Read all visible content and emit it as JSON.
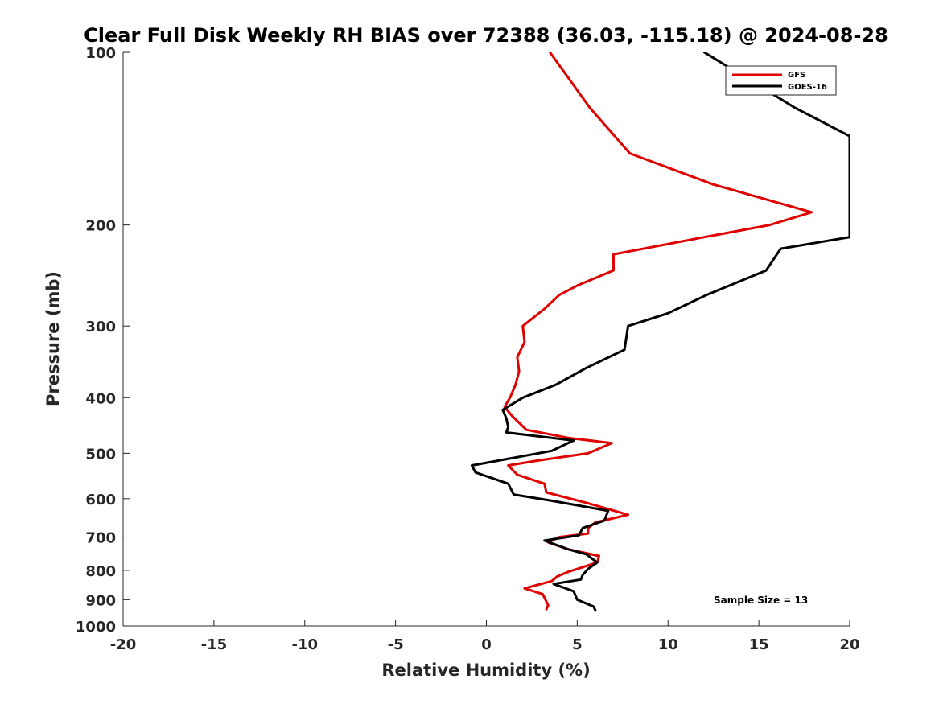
{
  "chart_data": {
    "type": "line",
    "title": "Clear Full Disk Weekly RH BIAS over 72388 (36.03, -115.18) @ 2024-08-28",
    "xlabel": "Relative Humidity (%)",
    "ylabel": "Pressure (mb)",
    "xlim": [
      -20,
      20
    ],
    "ylim": [
      1000,
      100
    ],
    "y_scale": "log",
    "y_reversed": true,
    "x_ticks": [
      -20,
      -15,
      -10,
      -5,
      0,
      5,
      10,
      15,
      20
    ],
    "x_tick_labels": [
      "-20",
      "-15",
      "-10",
      "-5",
      "0",
      "5",
      "10",
      "15",
      "20"
    ],
    "y_ticks": [
      100,
      200,
      300,
      400,
      500,
      600,
      700,
      800,
      900,
      1000
    ],
    "y_tick_labels": [
      "100",
      "200",
      "300",
      "400",
      "500",
      "600",
      "700",
      "800",
      "900",
      "1000"
    ],
    "grid": false,
    "legend_position": "top-right",
    "annotation": "Sample Size = 13",
    "series": [
      {
        "name": "GFS",
        "color": "#e00000",
        "points": [
          [
            3.5,
            100
          ],
          [
            5.7,
            125
          ],
          [
            7.9,
            150
          ],
          [
            12.5,
            170
          ],
          [
            17.9,
            190
          ],
          [
            15.6,
            200
          ],
          [
            12.0,
            210
          ],
          [
            7.0,
            225
          ],
          [
            7.0,
            240
          ],
          [
            5.0,
            255
          ],
          [
            4.0,
            265
          ],
          [
            3.2,
            280
          ],
          [
            2.0,
            300
          ],
          [
            2.1,
            320
          ],
          [
            1.7,
            340
          ],
          [
            1.8,
            360
          ],
          [
            1.6,
            380
          ],
          [
            1.3,
            400
          ],
          [
            1.0,
            415
          ],
          [
            1.4,
            430
          ],
          [
            2.2,
            455
          ],
          [
            4.5,
            470
          ],
          [
            6.9,
            480
          ],
          [
            5.6,
            500
          ],
          [
            2.8,
            515
          ],
          [
            1.2,
            525
          ],
          [
            1.7,
            545
          ],
          [
            3.2,
            565
          ],
          [
            3.3,
            585
          ],
          [
            5.5,
            610
          ],
          [
            7.8,
            640
          ],
          [
            6.0,
            660
          ],
          [
            5.6,
            675
          ],
          [
            5.6,
            690
          ],
          [
            4.0,
            700
          ],
          [
            3.4,
            715
          ],
          [
            4.5,
            735
          ],
          [
            6.2,
            755
          ],
          [
            6.1,
            775
          ],
          [
            4.5,
            805
          ],
          [
            3.9,
            820
          ],
          [
            3.6,
            835
          ],
          [
            2.1,
            860
          ],
          [
            3.1,
            880
          ],
          [
            3.4,
            920
          ],
          [
            3.3,
            935
          ]
        ]
      },
      {
        "name": "GOES-16",
        "color": "#000000",
        "points": [
          [
            12.0,
            100
          ],
          [
            17.0,
            125
          ],
          [
            20.0,
            140
          ],
          [
            20.0,
            210
          ],
          [
            16.2,
            220
          ],
          [
            15.4,
            240
          ],
          [
            12.1,
            265
          ],
          [
            10.0,
            285
          ],
          [
            7.8,
            300
          ],
          [
            7.6,
            330
          ],
          [
            5.5,
            355
          ],
          [
            3.8,
            380
          ],
          [
            2.0,
            400
          ],
          [
            0.9,
            420
          ],
          [
            1.1,
            435
          ],
          [
            1.2,
            450
          ],
          [
            1.1,
            460
          ],
          [
            4.8,
            475
          ],
          [
            3.6,
            495
          ],
          [
            -0.8,
            525
          ],
          [
            -0.6,
            540
          ],
          [
            1.2,
            565
          ],
          [
            1.5,
            590
          ],
          [
            3.6,
            605
          ],
          [
            6.7,
            630
          ],
          [
            6.5,
            655
          ],
          [
            5.3,
            675
          ],
          [
            5.1,
            695
          ],
          [
            3.2,
            710
          ],
          [
            4.5,
            735
          ],
          [
            5.5,
            750
          ],
          [
            6.1,
            775
          ],
          [
            5.6,
            795
          ],
          [
            5.3,
            815
          ],
          [
            5.2,
            830
          ],
          [
            3.7,
            845
          ],
          [
            4.8,
            870
          ],
          [
            5.0,
            900
          ],
          [
            5.9,
            925
          ],
          [
            6.0,
            940
          ]
        ]
      }
    ]
  }
}
